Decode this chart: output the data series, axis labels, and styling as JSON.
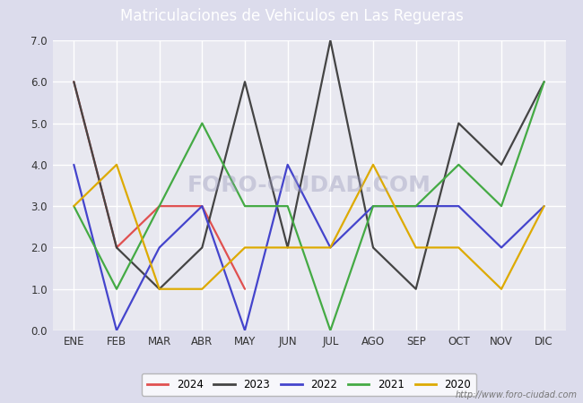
{
  "title": "Matriculaciones de Vehiculos en Las Regueras",
  "months": [
    "ENE",
    "FEB",
    "MAR",
    "ABR",
    "MAY",
    "JUN",
    "JUL",
    "AGO",
    "SEP",
    "OCT",
    "NOV",
    "DIC"
  ],
  "series": {
    "2024": {
      "color": "#e05050",
      "values": [
        6.0,
        2.0,
        3.0,
        3.0,
        1.0,
        null,
        null,
        null,
        null,
        null,
        null,
        null
      ]
    },
    "2023": {
      "color": "#444444",
      "values": [
        6.0,
        2.0,
        1.0,
        2.0,
        6.0,
        2.0,
        7.0,
        2.0,
        1.0,
        5.0,
        4.0,
        6.0
      ]
    },
    "2022": {
      "color": "#4444cc",
      "values": [
        4.0,
        0.0,
        2.0,
        3.0,
        0.0,
        4.0,
        2.0,
        3.0,
        3.0,
        3.0,
        2.0,
        3.0
      ]
    },
    "2021": {
      "color": "#44aa44",
      "values": [
        3.0,
        1.0,
        3.0,
        5.0,
        3.0,
        3.0,
        0.0,
        3.0,
        3.0,
        4.0,
        3.0,
        6.0
      ]
    },
    "2020": {
      "color": "#ddaa00",
      "values": [
        3.0,
        4.0,
        1.0,
        1.0,
        2.0,
        2.0,
        2.0,
        4.0,
        2.0,
        2.0,
        1.0,
        3.0
      ]
    }
  },
  "ylim": [
    0.0,
    7.0
  ],
  "yticks": [
    0.0,
    1.0,
    2.0,
    3.0,
    4.0,
    5.0,
    6.0,
    7.0
  ],
  "fig_bg_color": "#dcdcec",
  "plot_bg_color": "#e8e8f0",
  "title_bg_color": "#5588cc",
  "title_color": "#ffffff",
  "grid_color": "#ffffff",
  "watermark_text": "http://www.foro-ciudad.com",
  "watermark_chart": "FORO-CIUDAD.COM",
  "title_fontsize": 12,
  "tick_fontsize": 8.5,
  "legend_fontsize": 8.5,
  "linewidth": 1.6
}
